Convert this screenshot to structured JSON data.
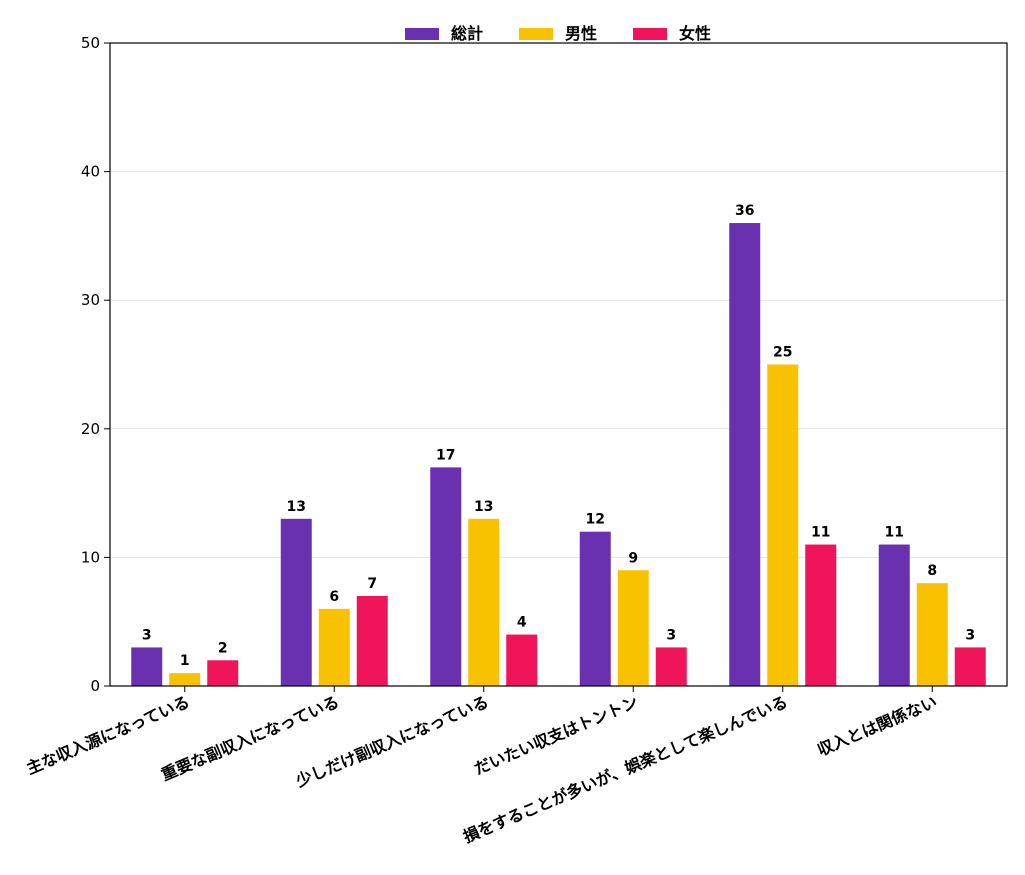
{
  "chart_data": {
    "type": "bar",
    "title": "",
    "xlabel": "",
    "ylabel": "",
    "categories": [
      "主な収入源になっている",
      "重要な副収入になっている",
      "少しだけ副収入になっている",
      "だいたい収支はトントン",
      "損をすることが多いが、娯楽として楽しんでいる",
      "収入とは関係ない"
    ],
    "series": [
      {
        "name": "総計",
        "color": "#6930b0",
        "values": [
          3,
          13,
          17,
          12,
          36,
          11
        ]
      },
      {
        "name": "男性",
        "color": "#f9c200",
        "values": [
          1,
          6,
          13,
          9,
          25,
          8
        ]
      },
      {
        "name": "女性",
        "color": "#f0145a",
        "values": [
          2,
          7,
          4,
          3,
          11,
          3
        ]
      }
    ],
    "ylim": [
      0,
      50
    ],
    "yticks": [
      0,
      10,
      20,
      30,
      40,
      50
    ],
    "grid": "horizontal",
    "legend_position": "top-center",
    "data_labels": true
  }
}
